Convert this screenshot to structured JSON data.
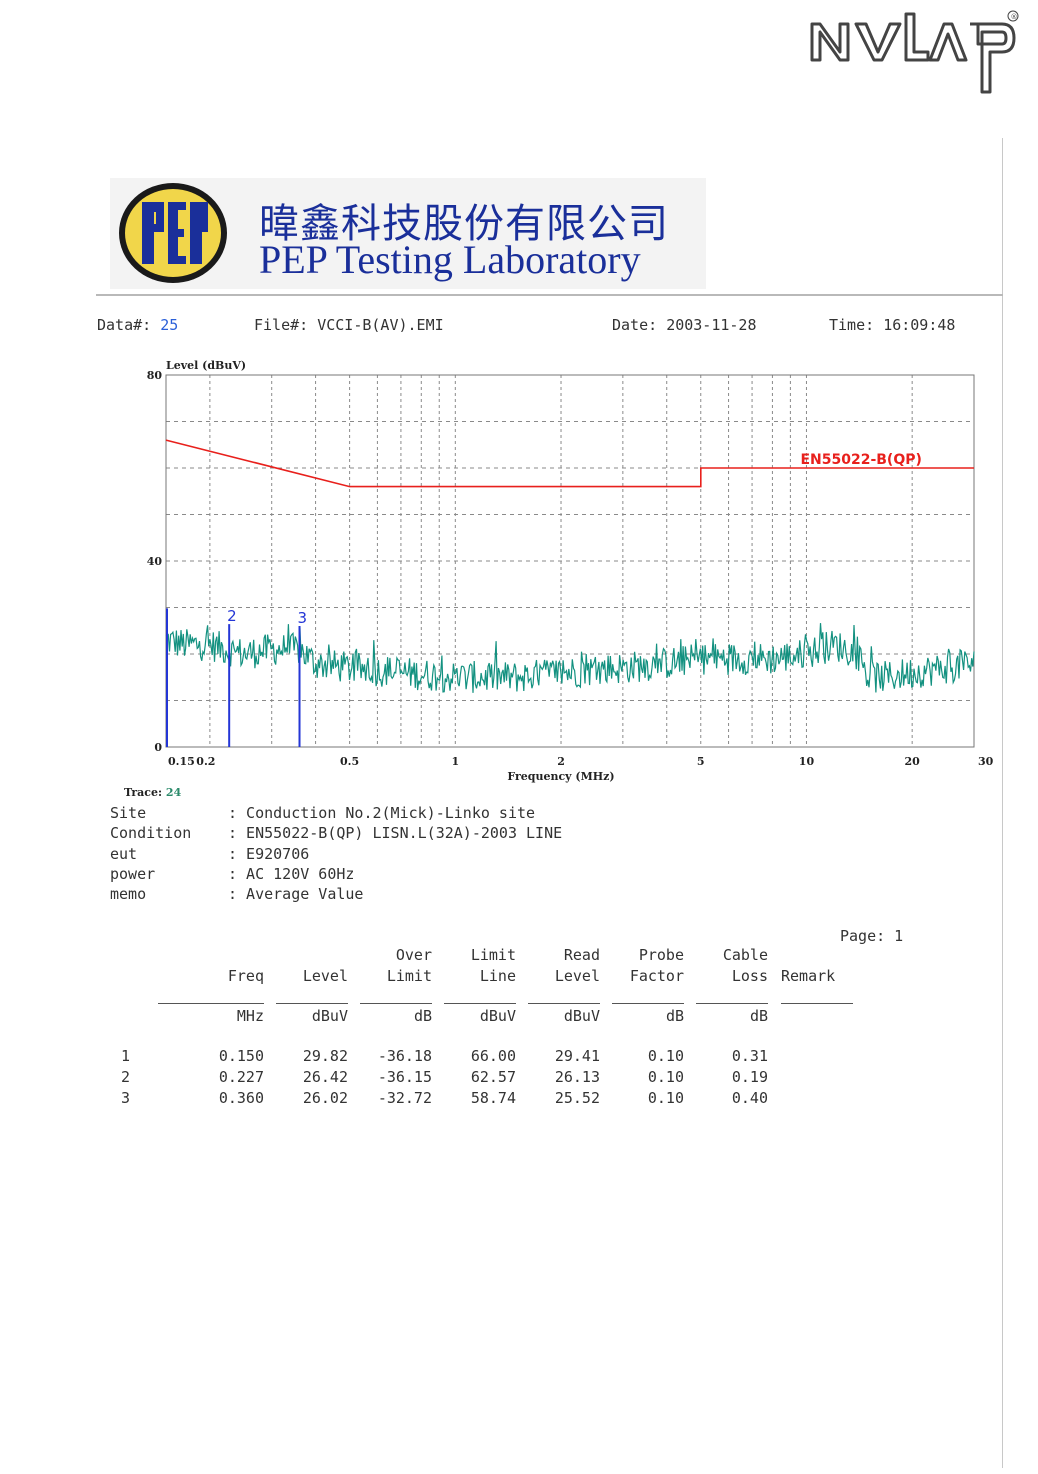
{
  "accreditation_logo": {
    "text": "NVLAP",
    "registered_mark": "®"
  },
  "lab": {
    "name_zh": "暐鑫科技股份有限公司",
    "name_en": "PEP Testing Laboratory",
    "emblem_text": "PEP"
  },
  "meta": {
    "data_label": "Data#:",
    "data_value": "25",
    "file_label": "File#:",
    "file_value": "VCCI-B(AV).EMI",
    "date_label": "Date:",
    "date_value": "2003-11-28",
    "time_label": "Time:",
    "time_value": "16:09:48"
  },
  "colors": {
    "limit_line": "#e8201c",
    "trace": "#139180",
    "markers": "#2436d6",
    "brand_blue": "#1a2f9a",
    "emblem_yellow": "#f1d64a"
  },
  "chart_data": {
    "type": "line",
    "title": "",
    "ylabel": "Level (dBuV)",
    "xlabel": "Frequency (MHz)",
    "x_scale": "log",
    "xlim": [
      0.15,
      30
    ],
    "ylim": [
      0,
      80
    ],
    "y_ticks": [
      0,
      40,
      80
    ],
    "x_tick_labels": [
      {
        "value": 0.15,
        "label": "0.15"
      },
      {
        "value": 0.2,
        "label": "0.2"
      },
      {
        "value": 0.5,
        "label": "0.5"
      },
      {
        "value": 1,
        "label": "1"
      },
      {
        "value": 2,
        "label": "2"
      },
      {
        "value": 5,
        "label": "5"
      },
      {
        "value": 10,
        "label": "10"
      },
      {
        "value": 20,
        "label": "20"
      },
      {
        "value": 30,
        "label": "30"
      }
    ],
    "grid": true,
    "limit_line": {
      "name": "EN55022-B(QP)",
      "points": [
        [
          0.15,
          66
        ],
        [
          0.5,
          56
        ],
        [
          5,
          56
        ],
        [
          5,
          60
        ],
        [
          30,
          60
        ]
      ]
    },
    "trace_envelope": {
      "x": [
        0.15,
        0.17,
        0.2,
        0.25,
        0.3,
        0.36,
        0.4,
        0.5,
        0.7,
        1,
        1.5,
        2,
        3,
        4,
        5,
        6,
        8,
        10,
        12,
        14,
        15,
        17,
        20,
        25,
        30
      ],
      "y": [
        23,
        22,
        22,
        20,
        21,
        21,
        18,
        17,
        16,
        15,
        15,
        16,
        17,
        18,
        19,
        19,
        19,
        20,
        22,
        20,
        15,
        15,
        16,
        17,
        18
      ]
    },
    "markers": [
      {
        "label": "1",
        "freq": 0.15,
        "level": 29.82
      },
      {
        "label": "2",
        "freq": 0.227,
        "level": 26.42
      },
      {
        "label": "3",
        "freq": 0.36,
        "level": 26.02
      }
    ]
  },
  "trace": {
    "label": "Trace:",
    "value": "24"
  },
  "info": [
    {
      "key": "Site",
      "value": ": Conduction No.2(Mick)-Linko site"
    },
    {
      "key": "Condition",
      "value": ": EN55022-B(QP) LISN.L(32A)-2003 LINE"
    },
    {
      "key": "eut",
      "value": ": E920706"
    },
    {
      "key": "power",
      "value": ": AC 120V 60Hz"
    },
    {
      "key": "memo",
      "value": ": Average Value"
    }
  ],
  "page_label": "Page: 1",
  "table": {
    "header_top": [
      "",
      "",
      "Over",
      "Limit",
      "Read",
      "Probe",
      "Cable",
      ""
    ],
    "header_bottom": [
      "Freq",
      "Level",
      "Limit",
      "Line",
      "Level",
      "Factor",
      "Loss",
      "Remark"
    ],
    "units": [
      "MHz",
      "dBuV",
      "dB",
      "dBuV",
      "dBuV",
      "dB",
      "dB",
      ""
    ],
    "rows": [
      {
        "no": "1",
        "cells": [
          "0.150",
          "29.82",
          "-36.18",
          "66.00",
          "29.41",
          "0.10",
          "0.31",
          ""
        ]
      },
      {
        "no": "2",
        "cells": [
          "0.227",
          "26.42",
          "-36.15",
          "62.57",
          "26.13",
          "0.10",
          "0.19",
          ""
        ]
      },
      {
        "no": "3",
        "cells": [
          "0.360",
          "26.02",
          "-32.72",
          "58.74",
          "25.52",
          "0.10",
          "0.40",
          ""
        ]
      }
    ]
  }
}
